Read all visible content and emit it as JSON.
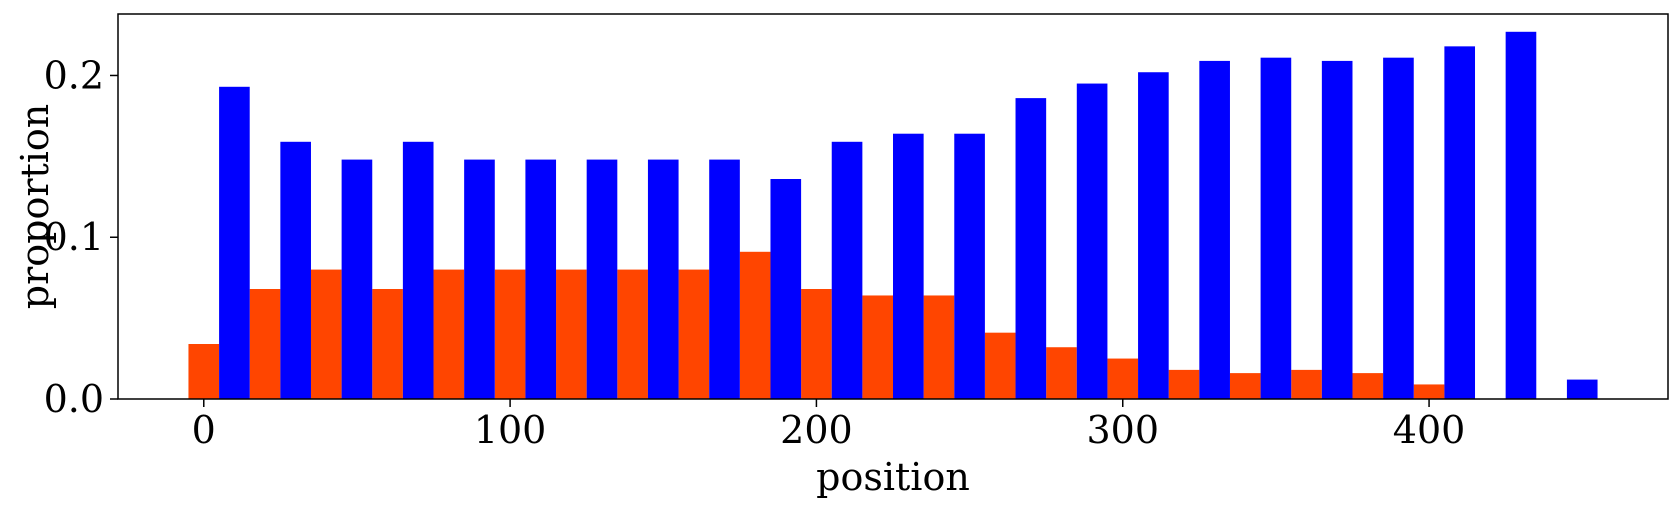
{
  "chart_data": {
    "type": "bar",
    "xlabel": "position",
    "ylabel": "proportion",
    "xlim": [
      -28,
      478
    ],
    "ylim": [
      0,
      0.238
    ],
    "xticks": [
      0,
      100,
      200,
      300,
      400
    ],
    "xtick_labels": [
      "0",
      "100",
      "200",
      "300",
      "400"
    ],
    "yticks": [
      0.0,
      0.1,
      0.2
    ],
    "ytick_labels": [
      "0.0",
      "0.1",
      "0.2"
    ],
    "bar_width": 10,
    "grid": false,
    "legend": "none",
    "series": [
      {
        "color": "#ff4500",
        "x": [
          0,
          20,
          40,
          60,
          80,
          100,
          120,
          140,
          160,
          180,
          200,
          220,
          240,
          260,
          280,
          300,
          320,
          340,
          360,
          380,
          400,
          420,
          440
        ],
        "values": [
          0.034,
          0.068,
          0.08,
          0.068,
          0.08,
          0.08,
          0.08,
          0.08,
          0.08,
          0.091,
          0.068,
          0.064,
          0.064,
          0.041,
          0.032,
          0.025,
          0.018,
          0.016,
          0.018,
          0.016,
          0.009,
          0.0,
          0.0
        ]
      },
      {
        "color": "#0000ff",
        "x": [
          10,
          30,
          50,
          70,
          90,
          110,
          130,
          150,
          170,
          190,
          210,
          230,
          250,
          270,
          290,
          310,
          330,
          350,
          370,
          390,
          410,
          430,
          450
        ],
        "values": [
          0.193,
          0.159,
          0.148,
          0.159,
          0.148,
          0.148,
          0.148,
          0.148,
          0.148,
          0.136,
          0.159,
          0.164,
          0.164,
          0.186,
          0.195,
          0.202,
          0.209,
          0.211,
          0.209,
          0.211,
          0.218,
          0.227,
          0.012
        ]
      }
    ]
  }
}
